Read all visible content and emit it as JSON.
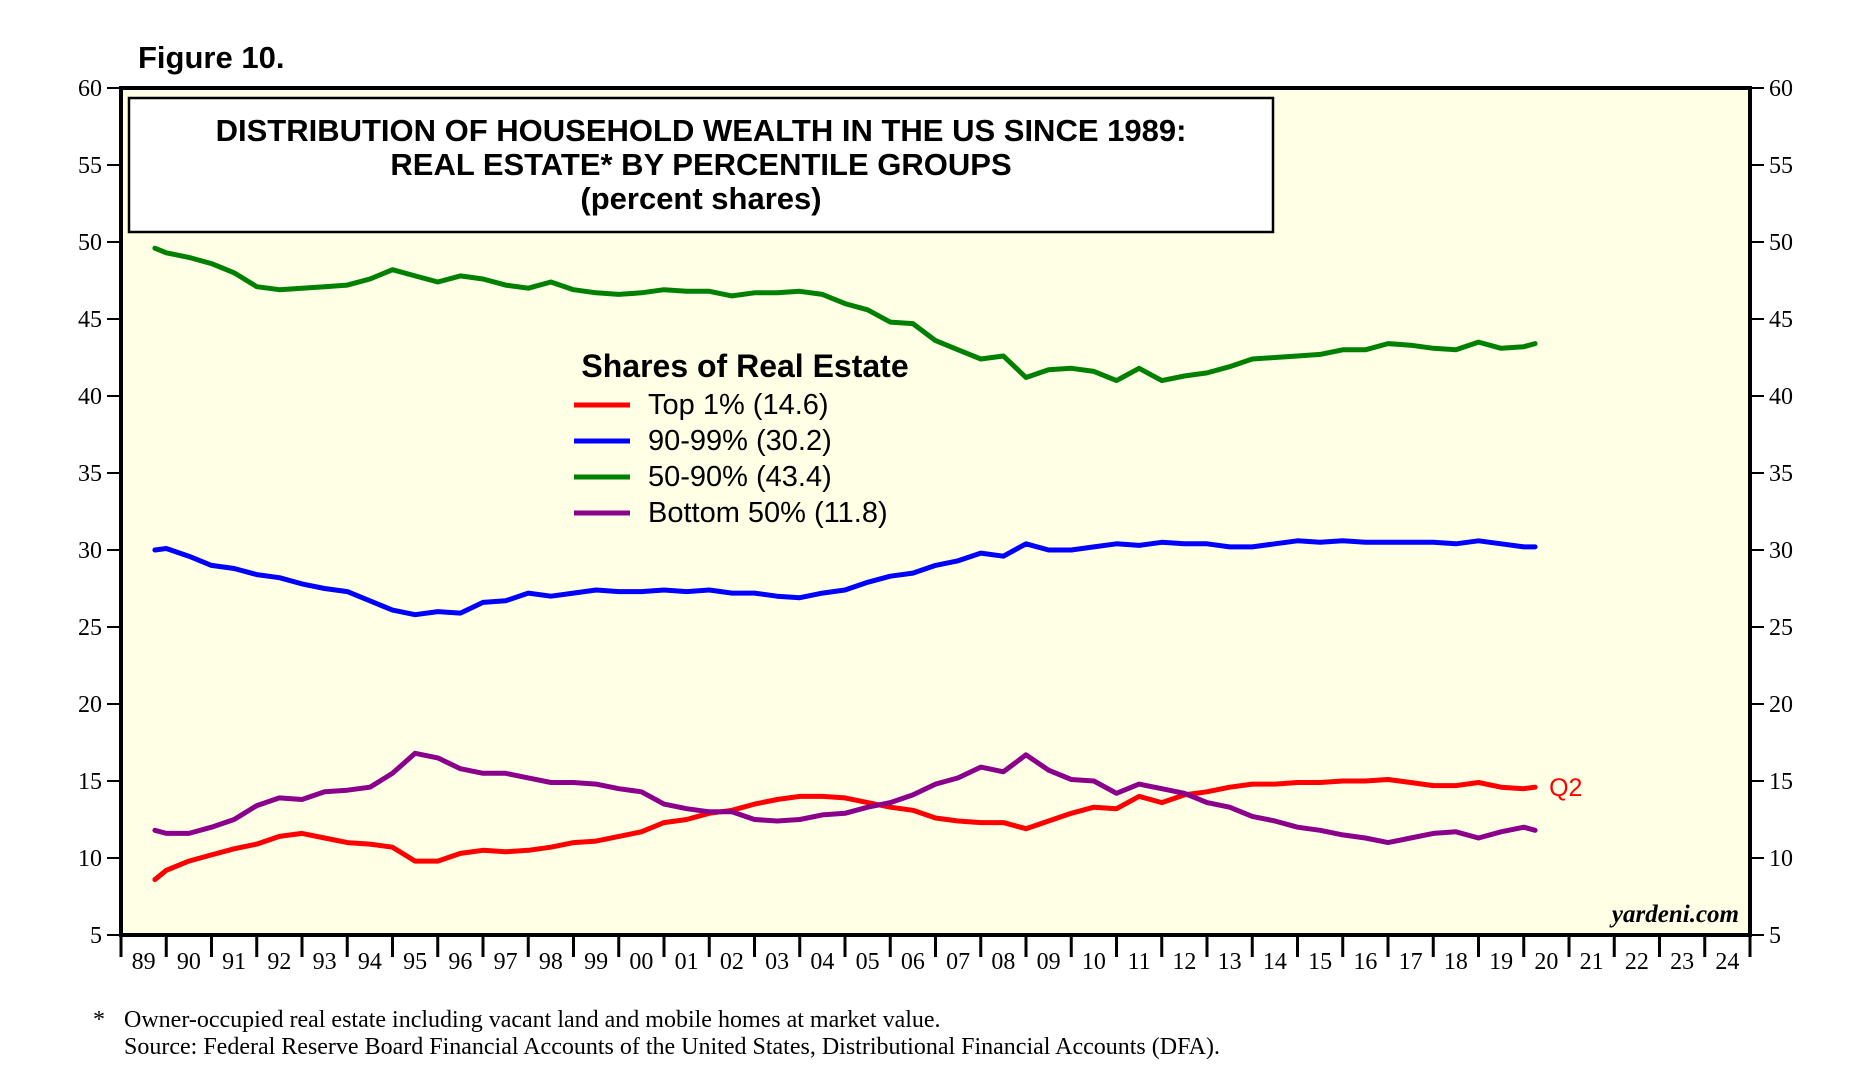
{
  "figure_label": "Figure 10.",
  "brand": "yardeni.com",
  "footnote": {
    "star": "*",
    "line1": "Owner-occupied real estate including vacant land and mobile homes at market value.",
    "line2": "Source: Federal Reserve Board Financial Accounts of the United States, Distributional Financial Accounts (DFA)."
  },
  "chart_data": {
    "type": "line",
    "title": [
      "DISTRIBUTION OF HOUSEHOLD WEALTH IN THE US SINCE 1989:",
      "REAL ESTATE* BY PERCENTILE GROUPS",
      "(percent shares)"
    ],
    "ylim": [
      5,
      60
    ],
    "yticks": [
      5,
      10,
      15,
      20,
      25,
      30,
      35,
      40,
      45,
      50,
      55,
      60
    ],
    "xlim": [
      1989,
      2025
    ],
    "x_tick_labels": [
      "89",
      "90",
      "91",
      "92",
      "93",
      "94",
      "95",
      "96",
      "97",
      "98",
      "99",
      "00",
      "01",
      "02",
      "03",
      "04",
      "05",
      "06",
      "07",
      "08",
      "09",
      "10",
      "11",
      "12",
      "13",
      "14",
      "15",
      "16",
      "17",
      "18",
      "19",
      "20",
      "21",
      "22",
      "23",
      "24"
    ],
    "legend_title": "Shares of Real Estate",
    "annotation": "Q2",
    "series": [
      {
        "name": "Top 1%",
        "legend": "Top 1% (14.6)",
        "color": "#ff0000",
        "x": [
          1989.75,
          1990.0,
          1990.5,
          1991.0,
          1991.5,
          1992.0,
          1992.5,
          1993.0,
          1993.5,
          1994.0,
          1994.5,
          1995.0,
          1995.5,
          1996.0,
          1996.5,
          1997.0,
          1997.5,
          1998.0,
          1998.5,
          1999.0,
          1999.5,
          2000.0,
          2000.5,
          2001.0,
          2001.5,
          2002.0,
          2002.5,
          2003.0,
          2003.5,
          2004.0,
          2004.5,
          2005.0,
          2005.5,
          2006.0,
          2006.5,
          2007.0,
          2007.5,
          2008.0,
          2008.5,
          2009.0,
          2009.5,
          2010.0,
          2010.5,
          2011.0,
          2011.5,
          2012.0,
          2012.5,
          2013.0,
          2013.5,
          2014.0,
          2014.5,
          2015.0,
          2015.5,
          2016.0,
          2016.5,
          2017.0,
          2017.5,
          2018.0,
          2018.5,
          2019.0,
          2019.5,
          2020.0,
          2020.25
        ],
        "values": [
          8.6,
          9.2,
          9.8,
          10.2,
          10.6,
          10.9,
          11.4,
          11.6,
          11.3,
          11.0,
          10.9,
          10.7,
          9.8,
          9.8,
          10.3,
          10.5,
          10.4,
          10.5,
          10.7,
          11.0,
          11.1,
          11.4,
          11.7,
          12.3,
          12.5,
          12.9,
          13.1,
          13.5,
          13.8,
          14.0,
          14.0,
          13.9,
          13.6,
          13.3,
          13.1,
          12.6,
          12.4,
          12.3,
          12.3,
          11.9,
          12.4,
          12.9,
          13.3,
          13.2,
          14.0,
          13.6,
          14.1,
          14.3,
          14.6,
          14.8,
          14.8,
          14.9,
          14.9,
          15.0,
          15.0,
          15.1,
          14.9,
          14.7,
          14.7,
          14.9,
          14.6,
          14.5,
          14.6
        ]
      },
      {
        "name": "90-99%",
        "legend": "90-99% (30.2)",
        "color": "#0000ff",
        "x": [
          1989.75,
          1990.0,
          1990.5,
          1991.0,
          1991.5,
          1992.0,
          1992.5,
          1993.0,
          1993.5,
          1994.0,
          1994.5,
          1995.0,
          1995.5,
          1996.0,
          1996.5,
          1997.0,
          1997.5,
          1998.0,
          1998.5,
          1999.0,
          1999.5,
          2000.0,
          2000.5,
          2001.0,
          2001.5,
          2002.0,
          2002.5,
          2003.0,
          2003.5,
          2004.0,
          2004.5,
          2005.0,
          2005.5,
          2006.0,
          2006.5,
          2007.0,
          2007.5,
          2008.0,
          2008.5,
          2009.0,
          2009.5,
          2010.0,
          2010.5,
          2011.0,
          2011.5,
          2012.0,
          2012.5,
          2013.0,
          2013.5,
          2014.0,
          2014.5,
          2015.0,
          2015.5,
          2016.0,
          2016.5,
          2017.0,
          2017.5,
          2018.0,
          2018.5,
          2019.0,
          2019.5,
          2020.0,
          2020.25
        ],
        "values": [
          30.0,
          30.1,
          29.6,
          29.0,
          28.8,
          28.4,
          28.2,
          27.8,
          27.5,
          27.3,
          26.7,
          26.1,
          25.8,
          26.0,
          25.9,
          26.6,
          26.7,
          27.2,
          27.0,
          27.2,
          27.4,
          27.3,
          27.3,
          27.4,
          27.3,
          27.4,
          27.2,
          27.2,
          27.0,
          26.9,
          27.2,
          27.4,
          27.9,
          28.3,
          28.5,
          29.0,
          29.3,
          29.8,
          29.6,
          30.4,
          30.0,
          30.0,
          30.2,
          30.4,
          30.3,
          30.5,
          30.4,
          30.4,
          30.2,
          30.2,
          30.4,
          30.6,
          30.5,
          30.6,
          30.5,
          30.5,
          30.5,
          30.5,
          30.4,
          30.6,
          30.4,
          30.2,
          30.2
        ]
      },
      {
        "name": "50-90%",
        "legend": "50-90% (43.4)",
        "color": "#008000",
        "x": [
          1989.75,
          1990.0,
          1990.5,
          1991.0,
          1991.5,
          1992.0,
          1992.5,
          1993.0,
          1993.5,
          1994.0,
          1994.5,
          1995.0,
          1995.5,
          1996.0,
          1996.5,
          1997.0,
          1997.5,
          1998.0,
          1998.5,
          1999.0,
          1999.5,
          2000.0,
          2000.5,
          2001.0,
          2001.5,
          2002.0,
          2002.5,
          2003.0,
          2003.5,
          2004.0,
          2004.5,
          2005.0,
          2005.5,
          2006.0,
          2006.5,
          2007.0,
          2007.5,
          2008.0,
          2008.5,
          2009.0,
          2009.5,
          2010.0,
          2010.5,
          2011.0,
          2011.5,
          2012.0,
          2012.5,
          2013.0,
          2013.5,
          2014.0,
          2014.5,
          2015.0,
          2015.5,
          2016.0,
          2016.5,
          2017.0,
          2017.5,
          2018.0,
          2018.5,
          2019.0,
          2019.5,
          2020.0,
          2020.25
        ],
        "values": [
          49.6,
          49.3,
          49.0,
          48.6,
          48.0,
          47.1,
          46.9,
          47.0,
          47.1,
          47.2,
          47.6,
          48.2,
          47.8,
          47.4,
          47.8,
          47.6,
          47.2,
          47.0,
          47.4,
          46.9,
          46.7,
          46.6,
          46.7,
          46.9,
          46.8,
          46.8,
          46.5,
          46.7,
          46.7,
          46.8,
          46.6,
          46.0,
          45.6,
          44.8,
          44.7,
          43.6,
          43.0,
          42.4,
          42.6,
          41.2,
          41.7,
          41.8,
          41.6,
          41.0,
          41.8,
          41.0,
          41.3,
          41.5,
          41.9,
          42.4,
          42.5,
          42.6,
          42.7,
          43.0,
          43.0,
          43.4,
          43.3,
          43.1,
          43.0,
          43.5,
          43.1,
          43.2,
          43.4
        ]
      },
      {
        "name": "Bottom 50%",
        "legend": "Bottom 50% (11.8)",
        "color": "#8b008b",
        "x": [
          1989.75,
          1990.0,
          1990.5,
          1991.0,
          1991.5,
          1992.0,
          1992.5,
          1993.0,
          1993.5,
          1994.0,
          1994.5,
          1995.0,
          1995.5,
          1996.0,
          1996.5,
          1997.0,
          1997.5,
          1998.0,
          1998.5,
          1999.0,
          1999.5,
          2000.0,
          2000.5,
          2001.0,
          2001.5,
          2002.0,
          2002.5,
          2003.0,
          2003.5,
          2004.0,
          2004.5,
          2005.0,
          2005.5,
          2006.0,
          2006.5,
          2007.0,
          2007.5,
          2008.0,
          2008.5,
          2009.0,
          2009.5,
          2010.0,
          2010.5,
          2011.0,
          2011.5,
          2012.0,
          2012.5,
          2013.0,
          2013.5,
          2014.0,
          2014.5,
          2015.0,
          2015.5,
          2016.0,
          2016.5,
          2017.0,
          2017.5,
          2018.0,
          2018.5,
          2019.0,
          2019.5,
          2020.0,
          2020.25
        ],
        "values": [
          11.8,
          11.6,
          11.6,
          12.0,
          12.5,
          13.4,
          13.9,
          13.8,
          14.3,
          14.4,
          14.6,
          15.5,
          16.8,
          16.5,
          15.8,
          15.5,
          15.5,
          15.2,
          14.9,
          14.9,
          14.8,
          14.5,
          14.3,
          13.5,
          13.2,
          13.0,
          13.0,
          12.5,
          12.4,
          12.5,
          12.8,
          12.9,
          13.3,
          13.6,
          14.1,
          14.8,
          15.2,
          15.9,
          15.6,
          16.7,
          15.7,
          15.1,
          15.0,
          14.2,
          14.8,
          14.5,
          14.2,
          13.6,
          13.3,
          12.7,
          12.4,
          12.0,
          11.8,
          11.5,
          11.3,
          11.0,
          11.3,
          11.6,
          11.7,
          11.3,
          11.7,
          12.0,
          11.8
        ]
      }
    ]
  }
}
